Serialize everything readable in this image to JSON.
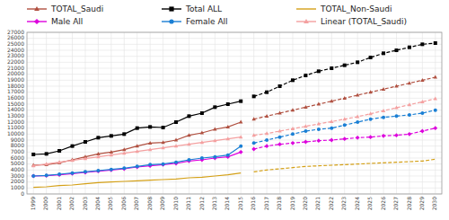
{
  "chart_data": {
    "type": "line",
    "x": [
      1999,
      2000,
      2001,
      2002,
      2003,
      2004,
      2005,
      2006,
      2007,
      2008,
      2009,
      2010,
      2011,
      2012,
      2013,
      2014,
      2015,
      2016,
      2017,
      2018,
      2019,
      2020,
      2021,
      2022,
      2023,
      2024,
      2025,
      2026,
      2027,
      2028,
      2029,
      2030
    ],
    "xlim": [
      1998.5,
      2030.5
    ],
    "xticks": [
      1999,
      2000,
      2001,
      2002,
      2003,
      2004,
      2005,
      2006,
      2007,
      2008,
      2009,
      2010,
      2011,
      2012,
      2013,
      2014,
      2015,
      2016,
      2017,
      2018,
      2019,
      2020,
      2021,
      2022,
      2023,
      2024,
      2025,
      2026,
      2027,
      2028,
      2029,
      2030
    ],
    "ylim": [
      0,
      27000
    ],
    "yticks": [
      0,
      1000,
      2000,
      3000,
      4000,
      5000,
      6000,
      7000,
      8000,
      9000,
      10000,
      11000,
      12000,
      13000,
      14000,
      15000,
      16000,
      17000,
      18000,
      19000,
      20000,
      21000,
      22000,
      23000,
      24000,
      25000,
      26000,
      27000
    ],
    "grid": true,
    "legend": "top",
    "series": [
      {
        "name": "TOTAL_Saudi",
        "color": "#b05040",
        "marker": "triangle",
        "line_style": "solid",
        "values": [
          4800,
          4900,
          5200,
          5700,
          6200,
          6700,
          7000,
          7400,
          8000,
          8500,
          8600,
          9000,
          9800,
          10200,
          10800,
          11200,
          12000,
          null,
          null,
          null,
          null,
          null,
          null,
          null,
          null,
          null,
          null,
          null,
          null,
          null,
          null,
          null
        ]
      },
      {
        "name": "TOTAL_Saudi",
        "color": "#b05040",
        "marker": "triangle",
        "line_style": "dashed",
        "values": [
          null,
          null,
          null,
          null,
          null,
          null,
          null,
          null,
          null,
          null,
          null,
          null,
          null,
          null,
          null,
          null,
          null,
          12500,
          13000,
          13500,
          14000,
          14500,
          15000,
          15500,
          16000,
          16500,
          17000,
          17500,
          18000,
          18500,
          19000,
          19500
        ]
      },
      {
        "name": "Total ALL",
        "color": "#000000",
        "marker": "square",
        "line_style": "solid",
        "values": [
          6600,
          6700,
          7200,
          8000,
          8700,
          9400,
          9700,
          10000,
          11000,
          11200,
          11100,
          12000,
          13000,
          13500,
          14500,
          15000,
          15500,
          null,
          null,
          null,
          null,
          null,
          null,
          null,
          null,
          null,
          null,
          null,
          null,
          null,
          null,
          null
        ]
      },
      {
        "name": "Total ALL",
        "color": "#000000",
        "marker": "square",
        "line_style": "dashed",
        "values": [
          null,
          null,
          null,
          null,
          null,
          null,
          null,
          null,
          null,
          null,
          null,
          null,
          null,
          null,
          null,
          null,
          null,
          16300,
          17000,
          18000,
          19000,
          19800,
          20500,
          21000,
          21500,
          22000,
          22800,
          23500,
          24000,
          24500,
          25000,
          25200
        ]
      },
      {
        "name": "TOTAL_Non-Saudi",
        "color": "#d4a017",
        "marker": "none",
        "line_style": "solid",
        "values": [
          1100,
          1200,
          1400,
          1500,
          1700,
          1900,
          2000,
          2100,
          2200,
          2300,
          2400,
          2500,
          2700,
          2800,
          3000,
          3200,
          3500,
          null,
          null,
          null,
          null,
          null,
          null,
          null,
          null,
          null,
          null,
          null,
          null,
          null,
          null,
          null
        ]
      },
      {
        "name": "TOTAL_Non-Saudi",
        "color": "#d4a017",
        "marker": "none",
        "line_style": "dashed",
        "values": [
          null,
          null,
          null,
          null,
          null,
          null,
          null,
          null,
          null,
          null,
          null,
          null,
          null,
          null,
          null,
          null,
          null,
          3700,
          4000,
          4200,
          4400,
          4600,
          4700,
          4800,
          4900,
          5000,
          5100,
          5200,
          5300,
          5400,
          5500,
          5800
        ]
      },
      {
        "name": "Male All",
        "color": "#dd00dd",
        "marker": "diamond",
        "line_style": "solid",
        "values": [
          3000,
          3050,
          3200,
          3400,
          3600,
          3800,
          4000,
          4200,
          4500,
          4700,
          4900,
          5100,
          5500,
          5700,
          6000,
          6200,
          7000,
          null,
          null,
          null,
          null,
          null,
          null,
          null,
          null,
          null,
          null,
          null,
          null,
          null,
          null,
          null
        ]
      },
      {
        "name": "Male All",
        "color": "#dd00dd",
        "marker": "diamond",
        "line_style": "dashed",
        "values": [
          null,
          null,
          null,
          null,
          null,
          null,
          null,
          null,
          null,
          null,
          null,
          null,
          null,
          null,
          null,
          null,
          null,
          7500,
          8000,
          8300,
          8500,
          8700,
          8900,
          9000,
          9200,
          9400,
          9500,
          9700,
          9800,
          10000,
          10500,
          11000
        ]
      },
      {
        "name": "Female All",
        "color": "#1a7fd4",
        "marker": "circle",
        "line_style": "solid",
        "values": [
          3000,
          3100,
          3300,
          3500,
          3700,
          3900,
          4100,
          4300,
          4600,
          4900,
          5000,
          5300,
          5700,
          6000,
          6200,
          6500,
          8000,
          null,
          null,
          null,
          null,
          null,
          null,
          null,
          null,
          null,
          null,
          null,
          null,
          null,
          null,
          null
        ]
      },
      {
        "name": "Female All",
        "color": "#1a7fd4",
        "marker": "circle",
        "line_style": "dashed",
        "values": [
          null,
          null,
          null,
          null,
          null,
          null,
          null,
          null,
          null,
          null,
          null,
          null,
          null,
          null,
          null,
          null,
          null,
          8500,
          9000,
          9500,
          10000,
          10500,
          10800,
          11000,
          11500,
          12000,
          12500,
          12800,
          13000,
          13200,
          13500,
          14000
        ]
      },
      {
        "name": "Linear (TOTAL_Saudi)",
        "color": "#f4a0a0",
        "marker": "triangle",
        "line_style": "solid",
        "values": [
          4700,
          5000,
          5300,
          5600,
          5900,
          6200,
          6500,
          6800,
          7100,
          7400,
          7700,
          8000,
          8300,
          8600,
          8900,
          9200,
          9500,
          null,
          null,
          null,
          null,
          null,
          null,
          null,
          null,
          null,
          null,
          null,
          null,
          null,
          null,
          null
        ]
      },
      {
        "name": "Linear (TOTAL_Saudi)",
        "color": "#f4a0a0",
        "marker": "triangle",
        "line_style": "dashed",
        "values": [
          null,
          null,
          null,
          null,
          null,
          null,
          null,
          null,
          null,
          null,
          null,
          null,
          null,
          null,
          null,
          null,
          null,
          9800,
          10100,
          10500,
          10900,
          11300,
          11700,
          12100,
          12500,
          12900,
          13400,
          13900,
          14400,
          14900,
          15400,
          15900
        ]
      }
    ]
  }
}
